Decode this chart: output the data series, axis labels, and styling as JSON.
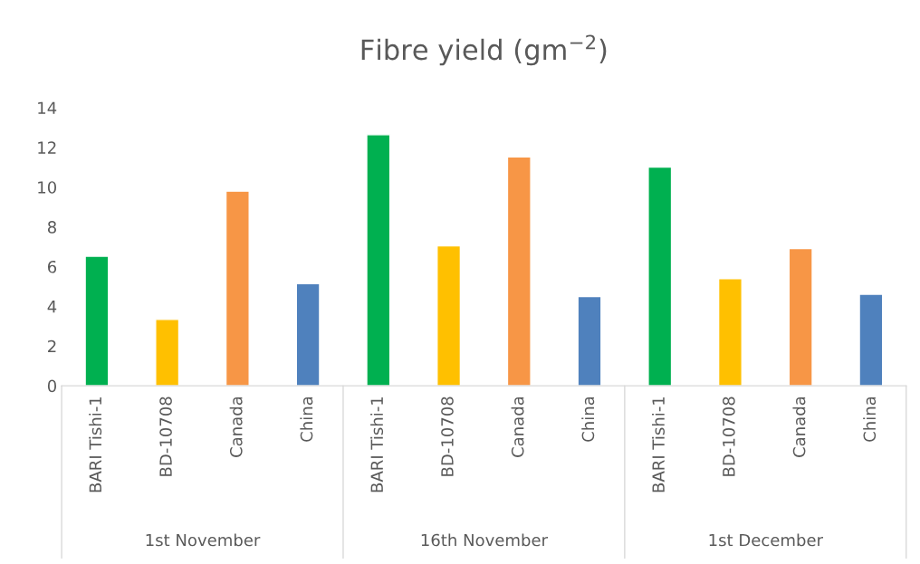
{
  "chart_data": {
    "type": "bar",
    "title": "Fibre yield (gm$^{−2}$)",
    "categories": [
      "BARI Tishi-1",
      "BD-10708",
      "Canada",
      "China",
      "BARI Tishi-1",
      "BD-10708",
      "Canada",
      "China",
      "BARI Tishi-1",
      "BD-10708",
      "Canada",
      "China"
    ],
    "values": [
      6.52,
      3.34,
      9.8,
      5.14,
      12.64,
      7.05,
      11.52,
      4.49,
      11.01,
      5.39,
      6.91,
      4.61
    ],
    "colors": [
      "#00b050",
      "#ffc000",
      "#f79646",
      "#4f81bd",
      "#00b050",
      "#ffc000",
      "#f79646",
      "#4f81bd",
      "#00b050",
      "#ffc000",
      "#f79646",
      "#4f81bd"
    ],
    "annotations": [
      "1st November",
      "16th November",
      "1st December"
    ],
    "ylim": [
      0,
      14
    ],
    "yticks": [
      0,
      2,
      4,
      6,
      8,
      10,
      12,
      14
    ],
    "grid": false
  }
}
